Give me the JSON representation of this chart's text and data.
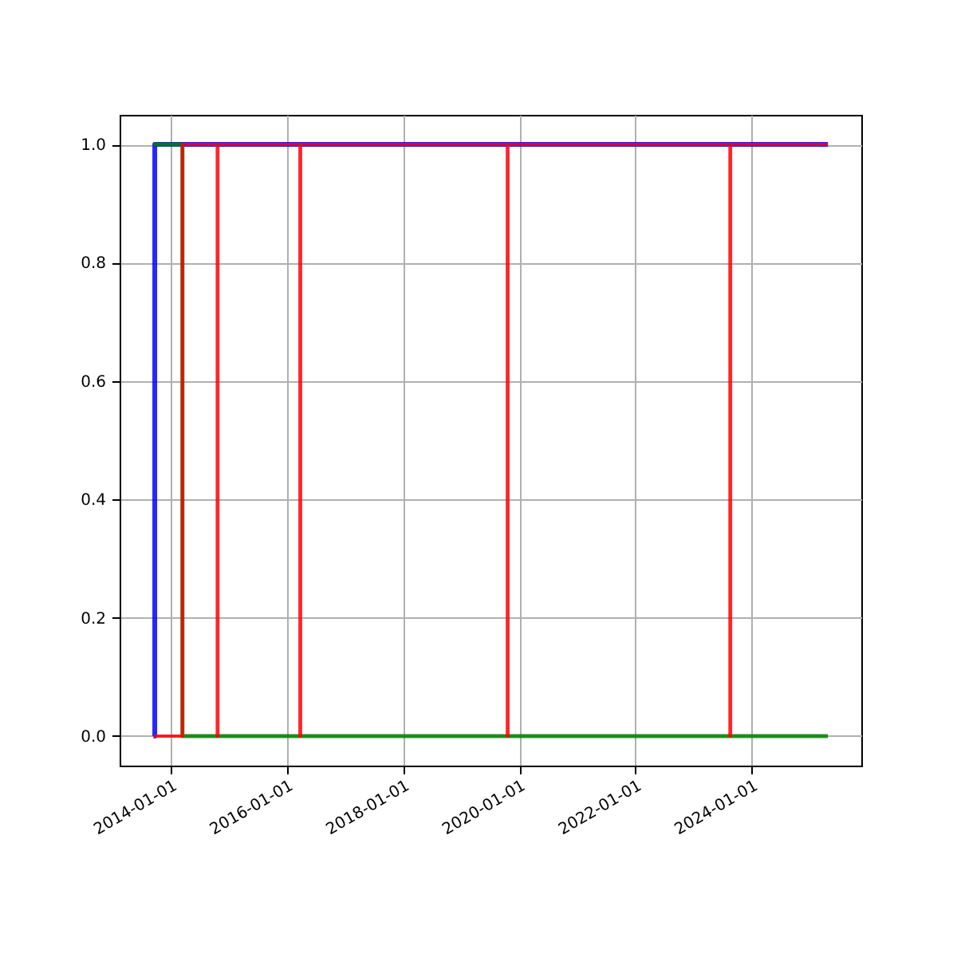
{
  "chart_data": {
    "type": "step",
    "xlim": [
      "2013-02-13",
      "2025-11-21"
    ],
    "ylim": [
      -0.05,
      1.05
    ],
    "xticks": [
      "2014-01-01",
      "2016-01-01",
      "2018-01-01",
      "2020-01-01",
      "2022-01-01",
      "2024-01-01"
    ],
    "yticks": [
      {
        "value": 0,
        "label": "0.0"
      },
      {
        "value": 0.2,
        "label": "0.2"
      },
      {
        "value": 0.4,
        "label": "0.4"
      },
      {
        "value": 0.6,
        "label": "0.6"
      },
      {
        "value": 0.8,
        "label": "0.8"
      },
      {
        "value": 1,
        "label": "1.0"
      }
    ],
    "grid": true,
    "series": [
      {
        "color": "#0000ff",
        "x": [
          "2013-09-15",
          "2013-09-22",
          "2025-04-25"
        ],
        "values": [
          0,
          1,
          1
        ]
      },
      {
        "color": "#008000",
        "x": [
          "2013-09-15",
          "2014-03-15",
          "2025-04-25"
        ],
        "values": [
          1,
          0,
          0
        ]
      },
      {
        "color": "#ff0000",
        "x": [
          "2013-09-15",
          "2014-03-15",
          "2014-10-20",
          "2014-10-24",
          "2016-03-23",
          "2016-03-27",
          "2019-10-18",
          "2019-10-22",
          "2023-08-18",
          "2023-08-22",
          "2025-04-25"
        ],
        "values": [
          0,
          1,
          0,
          1,
          0,
          1,
          0,
          1,
          0,
          1,
          1
        ]
      }
    ]
  }
}
